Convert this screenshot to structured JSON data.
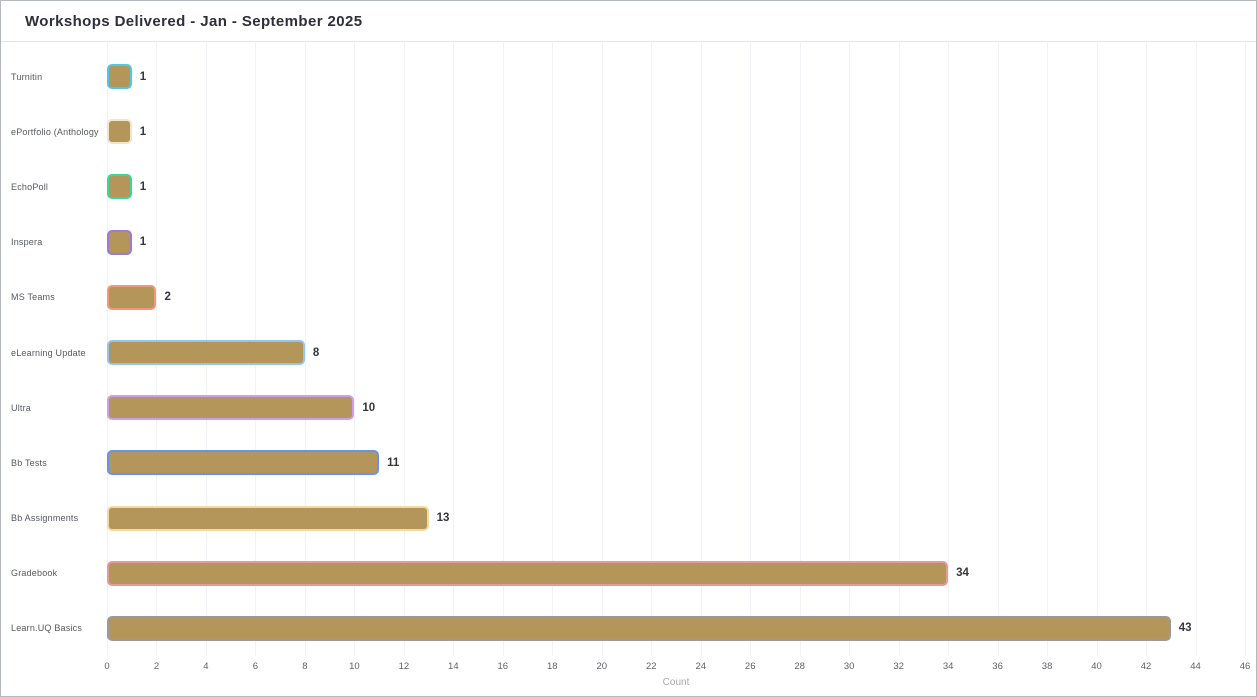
{
  "window": {
    "title": "Workshops Delivered - Jan - September 2025"
  },
  "chart_data": {
    "type": "bar",
    "orientation": "horizontal",
    "title": "Workshops Delivered - Jan - September 2025",
    "xlabel": "Count",
    "ylabel": "",
    "xlim": [
      0,
      46
    ],
    "tick_step": 2,
    "grid": true,
    "legend": "none",
    "categories": [
      "Turnitin",
      "ePortfolio (Anthology",
      "EchoPoll",
      "Inspera",
      "MS Teams",
      "eLearning Update",
      "Ultra",
      "Bb Tests",
      "Bb Assignments",
      "Gradebook",
      "Learn.UQ Basics"
    ],
    "values": [
      1,
      1,
      1,
      1,
      2,
      8,
      10,
      11,
      13,
      34,
      43
    ],
    "bar_fill": "#b5965a",
    "bar_borders": [
      "#4fc8e0",
      "#efe6c6",
      "#3ed598",
      "#9b7bd4",
      "#f09879",
      "#92c5f0",
      "#cf9ee8",
      "#6495e8",
      "#f3d9a4",
      "#e89a9a",
      "#9a9a9a"
    ],
    "gridline_color": "#f1f2f5",
    "value_label_color": "#343540",
    "category_label_color": "#55585f"
  }
}
